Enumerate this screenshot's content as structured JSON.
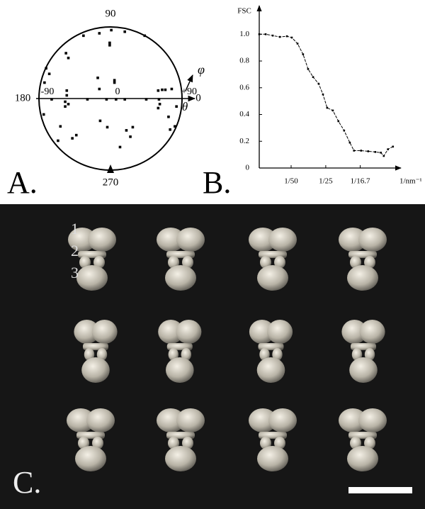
{
  "chart_data": [
    {
      "type": "polar-scatter",
      "panel_label": "A.",
      "angle_ticks": [
        90,
        180,
        270,
        0
      ],
      "angle_label": "φ",
      "x_label": "θ",
      "xlim": [
        -90,
        90
      ],
      "ylim": [
        -90,
        90
      ],
      "xticks": [
        -90,
        0,
        {
          "value": 90,
          "label": "+90"
        }
      ],
      "color": "#000000",
      "x": [
        -34,
        -14,
        1,
        18,
        43,
        -1,
        -1,
        -56,
        -53,
        -81,
        -77,
        -83,
        -16,
        5,
        5,
        -14,
        60,
        65,
        69,
        77,
        -55,
        -55,
        -57,
        -57,
        -53,
        -74,
        -29,
        -5,
        7,
        18,
        45,
        61,
        62,
        60,
        83,
        -84,
        -63,
        -66,
        -43,
        -48,
        -13,
        -4,
        28,
        20,
        25,
        73,
        81,
        75,
        12
      ],
      "y": [
        79,
        82,
        86,
        84,
        79,
        70,
        67,
        57,
        51,
        38,
        31,
        20,
        26,
        23,
        20,
        12,
        10,
        11,
        11,
        12,
        10,
        4,
        -4,
        -10,
        -7,
        -1,
        -1,
        -1,
        -1,
        -1,
        -1,
        -1,
        -7,
        -12,
        -10,
        -20,
        -35,
        -53,
        -46,
        -50,
        -28,
        -36,
        -36,
        -40,
        -48,
        -23,
        -35,
        -39,
        -61
      ]
    },
    {
      "type": "line",
      "panel_label": "B.",
      "x_label": "1/nm⁻¹",
      "y_label": "FSC",
      "color": "#000000",
      "xlim": [
        0.0016,
        0.08
      ],
      "ylim": [
        0,
        1.15
      ],
      "xticks": [
        {
          "value": 0.02,
          "label": "1/50"
        },
        {
          "value": 0.04,
          "label": "1/25"
        },
        {
          "value": 0.0599,
          "label": "1/16.7"
        }
      ],
      "yticks": [
        0,
        0.2,
        0.4,
        0.6,
        0.8,
        {
          "value": 1,
          "label": "1.0"
        }
      ],
      "x": [
        0.0016,
        0.0053,
        0.0094,
        0.0135,
        0.0176,
        0.0204,
        0.0237,
        0.0269,
        0.0298,
        0.0327,
        0.0359,
        0.0384,
        0.0408,
        0.0441,
        0.0473,
        0.0506,
        0.0539,
        0.0563,
        0.0604,
        0.0645,
        0.0686,
        0.0718,
        0.0735,
        0.0759,
        0.0788
      ],
      "values": [
        1.0,
        1.0,
        0.99,
        0.98,
        0.985,
        0.975,
        0.93,
        0.85,
        0.74,
        0.68,
        0.63,
        0.55,
        0.45,
        0.43,
        0.35,
        0.28,
        0.19,
        0.13,
        0.13,
        0.125,
        0.12,
        0.115,
        0.09,
        0.14,
        0.16
      ]
    }
  ],
  "panel_c": {
    "label": "C.",
    "row_labels": [
      "1",
      "2",
      "3"
    ]
  }
}
